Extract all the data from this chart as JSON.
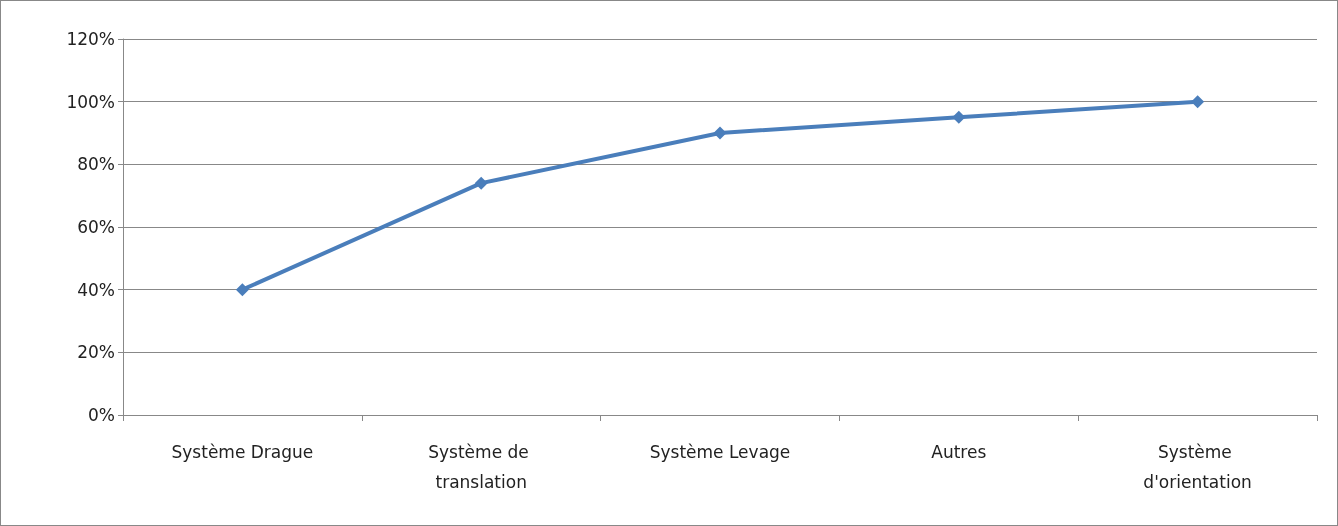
{
  "chart_data": {
    "type": "line",
    "categories": [
      "Système Drague",
      "Système de translation",
      "Système Levage",
      "Autres",
      "Système d'orientation"
    ],
    "series": [
      {
        "color": "#4a7ebb",
        "values": [
          40,
          74,
          90,
          95,
          100
        ]
      }
    ],
    "ylim": [
      0,
      120
    ],
    "yticks": [
      {
        "value": 0,
        "label": "0%"
      },
      {
        "value": 20,
        "label": "20%"
      },
      {
        "value": 40,
        "label": "40%"
      },
      {
        "value": 60,
        "label": "60%"
      },
      {
        "value": 80,
        "label": "80%"
      },
      {
        "value": 100,
        "label": "100%"
      },
      {
        "value": 120,
        "label": "120%"
      }
    ],
    "grid": "y",
    "marker": "diamond",
    "line_style": "solid"
  }
}
